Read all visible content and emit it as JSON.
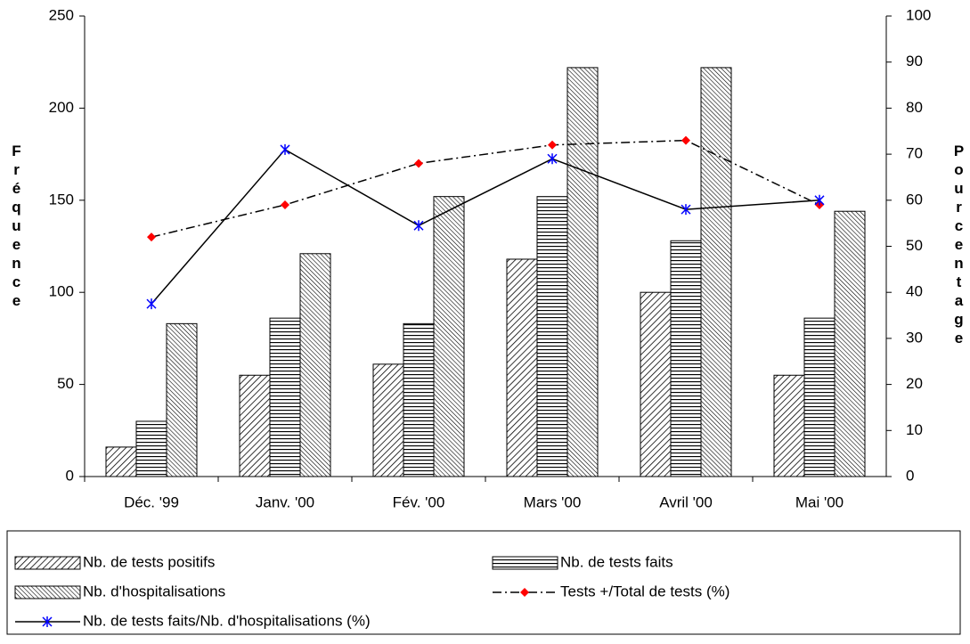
{
  "chart_data": {
    "type": "bar",
    "y_label": "Fréquence",
    "y2_label": "Pourcentage",
    "categories": [
      "Déc. '99",
      "Janv. '00",
      "Fév. '00",
      "Mars '00",
      "Avril '00",
      "Mai '00"
    ],
    "series": [
      {
        "name": "Nb. de tests positifs",
        "type": "bar",
        "pattern": "diagonal",
        "color": "#000000",
        "values": [
          16,
          55,
          61,
          118,
          100,
          55
        ]
      },
      {
        "name": "Nb. de tests faits",
        "type": "bar",
        "pattern": "horizontal",
        "color": "#000000",
        "values": [
          30,
          86,
          83,
          152,
          128,
          86
        ]
      },
      {
        "name": "Nb. d'hospitalisations",
        "type": "bar",
        "pattern": "diagonal-fine",
        "color": "#000000",
        "values": [
          83,
          121,
          152,
          222,
          222,
          144
        ]
      },
      {
        "name": "Tests +/Total de tests (%)",
        "type": "line",
        "axis": "y2",
        "dash": "dashdot",
        "marker": "diamond",
        "color": "#000000",
        "marker_color": "#ff0000",
        "values": [
          52,
          59,
          68,
          72,
          73,
          59
        ]
      },
      {
        "name": "Nb. de tests faits/Nb. d'hospitalisations (%)",
        "type": "line",
        "axis": "y2",
        "dash": "solid",
        "marker": "star",
        "color": "#000000",
        "marker_color": "#0000ff",
        "values": [
          37.5,
          71,
          54.5,
          69,
          58,
          60
        ]
      }
    ],
    "ylim": [
      0,
      250
    ],
    "yticks": [
      0,
      50,
      100,
      150,
      200,
      250
    ],
    "y2lim": [
      0,
      100
    ],
    "y2ticks": [
      0,
      10,
      20,
      30,
      40,
      50,
      60,
      70,
      80,
      90,
      100
    ],
    "grid": false
  }
}
